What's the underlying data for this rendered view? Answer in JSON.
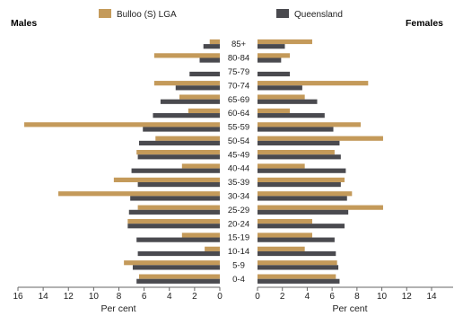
{
  "chart_data": {
    "type": "bar",
    "subtype": "population-pyramid",
    "categories": [
      "85+",
      "80-84",
      "75-79",
      "70-74",
      "65-69",
      "60-64",
      "55-59",
      "50-54",
      "45-49",
      "40-44",
      "35-39",
      "30-34",
      "25-29",
      "20-24",
      "15-19",
      "10-14",
      "5-9",
      "0-4"
    ],
    "panels": {
      "left": {
        "title": "Males",
        "xlabel": "Per cent",
        "xlim": [
          0,
          16
        ],
        "ticks": [
          16,
          14,
          12,
          10,
          8,
          6,
          4,
          2,
          0
        ]
      },
      "right": {
        "title": "Females",
        "xlabel": "Per cent",
        "xlim": [
          0,
          16
        ],
        "ticks": [
          0,
          2,
          4,
          6,
          8,
          10,
          12,
          14
        ]
      }
    },
    "series": [
      {
        "name": "Bulloo (S) LGA",
        "color": "#c49a5a",
        "males": [
          0.8,
          5.2,
          0,
          5.2,
          3.2,
          2.5,
          15.5,
          5.1,
          6.6,
          3.0,
          8.4,
          12.8,
          6.5,
          7.3,
          3.0,
          1.2,
          7.6,
          6.4
        ],
        "females": [
          4.4,
          2.6,
          0,
          8.9,
          3.8,
          2.6,
          8.3,
          10.1,
          6.2,
          3.8,
          7.0,
          7.6,
          10.1,
          4.4,
          4.4,
          3.8,
          6.4,
          6.3
        ]
      },
      {
        "name": "Queensland",
        "color": "#4a4a4f",
        "males": [
          1.3,
          1.6,
          2.4,
          3.5,
          4.7,
          5.3,
          6.1,
          6.4,
          6.5,
          7.0,
          6.5,
          7.1,
          7.2,
          7.3,
          6.6,
          6.5,
          6.9,
          6.6
        ],
        "females": [
          2.2,
          1.9,
          2.6,
          3.6,
          4.8,
          5.4,
          6.1,
          6.6,
          6.7,
          7.1,
          6.7,
          7.2,
          7.3,
          7.0,
          6.2,
          6.3,
          6.5,
          6.6
        ]
      }
    ],
    "legend": {
      "position": "top"
    },
    "grid": false
  }
}
